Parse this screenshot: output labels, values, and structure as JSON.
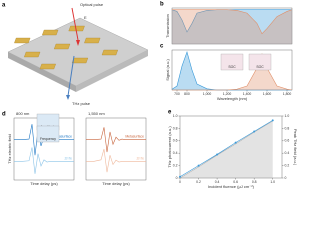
{
  "diagram": {
    "panel": "a",
    "labels": [
      "Optical pulse",
      "E",
      "THz pulse"
    ]
  },
  "chart_data": [
    {
      "type": "line",
      "panel": "b",
      "ylabel": "Transmission",
      "x": [
        650,
        700,
        750,
        800,
        850,
        900,
        1000,
        1100,
        1200,
        1300,
        1400,
        1500,
        1550,
        1600,
        1700,
        1800,
        1850
      ],
      "xlim": [
        650,
        1850
      ],
      "ylim": [
        0,
        1.05
      ],
      "series": [
        {
          "name": "800 nm",
          "color": "#3a9ad9",
          "fill": true,
          "values": [
            1,
            0.95,
            0.7,
            0.35,
            0.6,
            0.9,
            0.98,
            1,
            1,
            1,
            1,
            1,
            1,
            1,
            1,
            1,
            1
          ]
        },
        {
          "name": "1,550 nm",
          "color": "#e0906a",
          "fill": true,
          "values": [
            1,
            1,
            1,
            1,
            1,
            1,
            1,
            1,
            1,
            0.98,
            0.9,
            0.6,
            0.3,
            0.45,
            0.8,
            0.95,
            1
          ]
        }
      ]
    },
    {
      "type": "line",
      "panel": "c",
      "ylabel": "Signal (a.u.)",
      "xlabel": "Wavelength (nm)",
      "annotations": [
        "SOC",
        "SOC"
      ],
      "x": [
        650,
        700,
        750,
        800,
        850,
        900,
        1000,
        1100,
        1200,
        1300,
        1400,
        1500,
        1550,
        1600,
        1700,
        1800,
        1850
      ],
      "xlim": [
        650,
        1850
      ],
      "ylim": [
        0,
        1
      ],
      "xticks": [
        700,
        800,
        {
          "value": 1000,
          "label": "1,000"
        },
        {
          "value": 1200,
          "label": "1,200"
        },
        {
          "value": 1400,
          "label": "1,400"
        },
        {
          "value": 1600,
          "label": "1,600"
        },
        {
          "value": 1800,
          "label": "1,800"
        }
      ],
      "series": [
        {
          "name": "800 nm",
          "color": "#3a9ad9",
          "fill": true,
          "values": [
            0.02,
            0.1,
            0.6,
            0.95,
            0.5,
            0.15,
            0.03,
            0,
            0,
            0,
            0,
            0,
            0,
            0,
            0,
            0,
            0
          ]
        },
        {
          "name": "1,550 nm",
          "color": "#e0906a",
          "fill": true,
          "values": [
            0,
            0,
            0,
            0,
            0,
            0,
            0,
            0,
            0,
            0.02,
            0.1,
            0.55,
            0.9,
            0.55,
            0.1,
            0.02,
            0
          ]
        }
      ]
    },
    {
      "type": "line",
      "panel": "d",
      "title": "800 nm",
      "ylabel": "THz electric field",
      "xlabel": "Time delay (ps)",
      "annotations": [
        "Amplitude",
        "Frequency"
      ],
      "x": [
        -1,
        -0.5,
        0,
        0.2,
        0.4,
        0.6,
        0.8,
        1,
        1.2,
        1.4,
        1.6,
        2,
        2.5,
        3
      ],
      "xlim": [
        -1,
        3
      ],
      "ylim": [
        -1,
        1
      ],
      "series": [
        {
          "name": "Metasurface",
          "color": "#1f77c4",
          "values": [
            0.3,
            0.3,
            0.32,
            0.8,
            -0.2,
            0.6,
            0.1,
            0.4,
            0.25,
            0.33,
            0.3,
            0.3,
            0.3,
            0.3
          ]
        },
        {
          "name": "ZnTe",
          "color": "#8cc4e8",
          "values": [
            -0.4,
            -0.4,
            -0.38,
            0.05,
            -0.8,
            -0.15,
            -0.55,
            -0.35,
            -0.42,
            -0.4,
            -0.4,
            -0.4,
            -0.4,
            -0.4
          ]
        }
      ]
    },
    {
      "type": "line",
      "panel": null,
      "title": "1,550 nm",
      "xlabel": "Time delay (ps)",
      "x": [
        -1,
        -0.5,
        0,
        0.2,
        0.4,
        0.6,
        0.8,
        1,
        1.2,
        1.4,
        1.6,
        2,
        2.5,
        3
      ],
      "xlim": [
        -1,
        3
      ],
      "ylim": [
        -1,
        1
      ],
      "series": [
        {
          "name": "Metasurface",
          "color": "#c8643c",
          "values": [
            0.3,
            0.3,
            0.32,
            0.7,
            -0.1,
            0.55,
            0.15,
            0.38,
            0.28,
            0.32,
            0.3,
            0.3,
            0.3,
            0.3
          ]
        },
        {
          "name": "ZnTe",
          "color": "#efb89c",
          "values": [
            -0.4,
            -0.4,
            -0.35,
            0,
            -0.75,
            -0.2,
            -0.5,
            -0.36,
            -0.42,
            -0.4,
            -0.4,
            -0.4,
            -0.4,
            -0.4
          ]
        }
      ]
    },
    {
      "type": "line",
      "panel": "e",
      "xlabel": "Incident fluence (μJ cm⁻²)",
      "ylabel": "THz photocurrent (a.u.)",
      "y2label": "Peak THz field (a.u.)",
      "x": [
        0,
        0.2,
        0.4,
        0.6,
        0.8,
        1.0
      ],
      "xlim": [
        0,
        1.1
      ],
      "ylim": [
        0,
        1
      ],
      "y2lim": [
        0,
        1
      ],
      "xticks": [
        0,
        0.2,
        0.4,
        0.6,
        0.8,
        {
          "value": 1,
          "label": "1.0"
        }
      ],
      "yticks": [
        0,
        0.2,
        0.4,
        0.6,
        0.8,
        {
          "value": 1,
          "label": "1.0"
        }
      ],
      "y2ticks": [
        0,
        0.2,
        0.4,
        0.6,
        0.8,
        {
          "value": 1,
          "label": "1.0"
        }
      ],
      "series": [
        {
          "name": "Photocurrent",
          "color": "#b0b0b0",
          "fill": true,
          "values": [
            0,
            0.18,
            0.37,
            0.55,
            0.74,
            0.92
          ]
        },
        {
          "name": "Peak THz field",
          "color": "#3a9ad9",
          "markers": true,
          "axis": "y2",
          "values": [
            0.02,
            0.2,
            0.38,
            0.57,
            0.75,
            0.93
          ]
        }
      ]
    }
  ]
}
